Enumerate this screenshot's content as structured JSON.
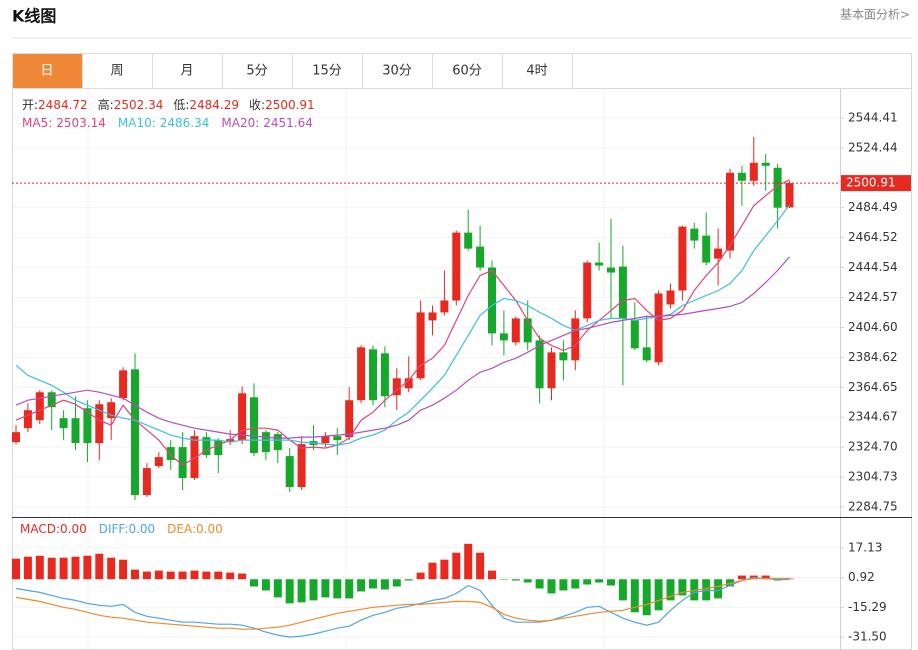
{
  "header": {
    "title": "K线图",
    "link": "基本面分析>"
  },
  "tabs": [
    "日",
    "周",
    "月",
    "5分",
    "15分",
    "30分",
    "60分",
    "4时"
  ],
  "active_tab": 0,
  "chart_data": [
    {
      "type": "candlestick",
      "ohlc_labels": [
        "开:",
        "高:",
        "低:",
        "收:"
      ],
      "up_color": "#e8291f",
      "down_color": "#16a82b",
      "ylim": [
        2278.09,
        2563.71
      ],
      "yticks": [
        2544.41,
        2524.44,
        2484.49,
        2464.52,
        2444.54,
        2424.57,
        {
          "value": 2404.6,
          "label": "2404.60"
        },
        2384.62,
        2364.65,
        2344.67,
        {
          "value": 2324.7,
          "label": "2324.70"
        },
        2304.73,
        2284.75
      ],
      "grid": true,
      "ohlc": [
        [
          2328.05,
          2339.37,
          2326.72,
          2334.71
        ],
        [
          2337.37,
          2354.01,
          2334.71,
          2349.35
        ],
        [
          2342.7,
          2362.66,
          2340.03,
          2361.33
        ],
        [
          2361.33,
          2362.66,
          2336.04,
          2351.35
        ],
        [
          2344.03,
          2349.35,
          2329.38,
          2337.37
        ],
        [
          2344.03,
          2358.67,
          2322.73,
          2327.39
        ],
        [
          2350.68,
          2356.01,
          2314.75,
          2327.39
        ],
        [
          2327.39,
          2356.01,
          2316.08,
          2353.35
        ],
        [
          2344.03,
          2357.34,
          2329.38,
          2354.68
        ],
        [
          2357.34,
          2377.98,
          2356.01,
          2375.98
        ],
        [
          2376.65,
          2387.3,
          2289.44,
          2292.77
        ],
        [
          2292.77,
          2314.08,
          2291.44,
          2310.75
        ],
        [
          2312.08,
          2321.4,
          2310.75,
          2318.07
        ],
        [
          2324.73,
          2329.38,
          2309.42,
          2316.08
        ],
        [
          2324.73,
          2334.71,
          2296.1,
          2304.09
        ],
        [
          2304.09,
          2336.04,
          2302.76,
          2332.05
        ],
        [
          2331.38,
          2334.71,
          2317.41,
          2319.41
        ],
        [
          2329.38,
          2330.72,
          2307.42,
          2319.41
        ],
        [
          2328.05,
          2336.04,
          2326.06,
          2330.05
        ],
        [
          2329.38,
          2365.33,
          2326.72,
          2360.66
        ],
        [
          2358.0,
          2367.32,
          2318.74,
          2320.74
        ],
        [
          2334.71,
          2336.04,
          2316.08,
          2321.4
        ],
        [
          2333.38,
          2334.71,
          2314.08,
          2322.73
        ],
        [
          2318.74,
          2324.06,
          2294.77,
          2298.1
        ],
        [
          2298.1,
          2332.05,
          2296.1,
          2326.72
        ],
        [
          2328.72,
          2339.37,
          2322.73,
          2326.06
        ],
        [
          2327.39,
          2334.71,
          2324.73,
          2332.05
        ],
        [
          2332.05,
          2337.37,
          2319.41,
          2329.38
        ],
        [
          2331.38,
          2364.66,
          2329.38,
          2356.01
        ],
        [
          2356.01,
          2392.63,
          2354.01,
          2391.3
        ],
        [
          2389.97,
          2392.63,
          2352.68,
          2356.01
        ],
        [
          2387.3,
          2391.97,
          2351.35,
          2358.67
        ],
        [
          2359.33,
          2377.31,
          2349.35,
          2370.65
        ],
        [
          2363.99,
          2385.3,
          2361.33,
          2370.65
        ],
        [
          2370.65,
          2422.59,
          2369.32,
          2414.6
        ],
        [
          2409.28,
          2419.26,
          2399.29,
          2414.6
        ],
        [
          2414.6,
          2442.56,
          2412.6,
          2422.59
        ],
        [
          2422.59,
          2469.19,
          2419.26,
          2467.86
        ],
        [
          2467.86,
          2483.17,
          2455.88,
          2457.21
        ],
        [
          2458.54,
          2472.51,
          2442.56,
          2444.56
        ],
        [
          2444.56,
          2449.22,
          2392.63,
          2400.62
        ],
        [
          2400.62,
          2415.93,
          2385.97,
          2395.96
        ],
        [
          2394.63,
          2411.94,
          2392.63,
          2410.61
        ],
        [
          2410.61,
          2422.59,
          2389.3,
          2394.63
        ],
        [
          2395.96,
          2399.29,
          2354.01,
          2363.99
        ],
        [
          2363.99,
          2391.3,
          2356.01,
          2387.97
        ],
        [
          2387.97,
          2395.96,
          2369.32,
          2382.64
        ],
        [
          2382.64,
          2415.93,
          2375.98,
          2410.61
        ],
        [
          2410.61,
          2449.22,
          2407.95,
          2447.89
        ],
        [
          2447.89,
          2461.2,
          2442.56,
          2445.89
        ],
        [
          2444.56,
          2477.17,
          2410.61,
          2441.23
        ],
        [
          2445.22,
          2459.2,
          2365.99,
          2410.61
        ],
        [
          2409.28,
          2421.26,
          2389.3,
          2390.64
        ],
        [
          2391.3,
          2412.6,
          2381.31,
          2382.64
        ],
        [
          2381.31,
          2429.24,
          2379.31,
          2427.24
        ],
        [
          2419.93,
          2433.9,
          2417.26,
          2429.24
        ],
        [
          2429.24,
          2472.51,
          2422.59,
          2471.85
        ],
        [
          2470.52,
          2474.51,
          2457.21,
          2462.53
        ],
        [
          2465.86,
          2481.17,
          2445.89,
          2447.89
        ],
        [
          2450.55,
          2470.52,
          2432.57,
          2457.21
        ],
        [
          2455.88,
          2510.46,
          2450.55,
          2507.8
        ],
        [
          2507.8,
          2512.46,
          2485.83,
          2502.47
        ],
        [
          2502.47,
          2531.76,
          2499.14,
          2514.46
        ],
        [
          2514.46,
          2520.45,
          2495.82,
          2512.46
        ],
        [
          2511.13,
          2513.8,
          2470.52,
          2484.5
        ],
        [
          2484.72,
          2502.34,
          2484.29,
          2500.91
        ]
      ],
      "series": [
        {
          "name": "MA5:",
          "color": "#e0457b",
          "values": [
            2342.71,
            2346.03,
            2349.36,
            2352.69,
            2356.02,
            2353.36,
            2348.03,
            2342.71,
            2339.38,
            2352.69,
            2342.71,
            2336.05,
            2329.39,
            2319.41,
            2312.75,
            2317.41,
            2322.73,
            2326.06,
            2329.39,
            2336.05,
            2337.38,
            2337.38,
            2336.05,
            2329.39,
            2324.07,
            2324.73,
            2324.07,
            2326.06,
            2330.72,
            2342.71,
            2348.03,
            2356.02,
            2362.68,
            2369.33,
            2379.32,
            2383.98,
            2392.63,
            2409.28,
            2425.92,
            2439.23,
            2442.56,
            2432.58,
            2422.59,
            2409.28,
            2397.29,
            2392.63,
            2389.3,
            2392.63,
            2402.62,
            2409.28,
            2415.93,
            2422.59,
            2423.92,
            2415.93,
            2409.28,
            2410.61,
            2415.93,
            2429.25,
            2439.23,
            2447.89,
            2459.2,
            2472.52,
            2485.83,
            2492.49,
            2499.15,
            2503.14
          ]
        },
        {
          "name": "MA10:",
          "color": "#3cbfdc",
          "values": [
            2379.32,
            2372.66,
            2369.33,
            2366.01,
            2361.35,
            2356.02,
            2352.69,
            2349.36,
            2346.03,
            2344.04,
            2342.71,
            2339.38,
            2336.05,
            2332.72,
            2330.72,
            2329.39,
            2329.39,
            2329.39,
            2328.06,
            2329.39,
            2329.39,
            2329.39,
            2329.39,
            2329.39,
            2328.06,
            2327.39,
            2326.73,
            2326.06,
            2327.39,
            2330.72,
            2332.72,
            2336.05,
            2342.71,
            2348.03,
            2356.02,
            2364.01,
            2372.66,
            2385.98,
            2399.29,
            2412.6,
            2419.26,
            2423.92,
            2422.59,
            2419.26,
            2414.6,
            2410.61,
            2405.95,
            2402.62,
            2405.95,
            2409.28,
            2410.61,
            2410.61,
            2409.28,
            2410.61,
            2411.94,
            2413.27,
            2419.26,
            2422.59,
            2425.92,
            2429.25,
            2433.91,
            2442.56,
            2455.87,
            2465.86,
            2475.85,
            2486.34
          ]
        },
        {
          "name": "MA20:",
          "color": "#b44fc0",
          "values": [
            2352.69,
            2356.02,
            2357.35,
            2358.68,
            2360.01,
            2361.35,
            2362.68,
            2361.35,
            2359.35,
            2357.35,
            2352.69,
            2348.03,
            2344.04,
            2341.37,
            2339.38,
            2337.38,
            2336.05,
            2334.72,
            2333.39,
            2332.72,
            2332.05,
            2331.39,
            2330.72,
            2330.72,
            2331.39,
            2331.39,
            2332.05,
            2332.72,
            2333.39,
            2334.72,
            2336.05,
            2337.38,
            2339.38,
            2342.71,
            2349.36,
            2352.69,
            2357.35,
            2362.68,
            2369.33,
            2374.66,
            2377.32,
            2381.32,
            2383.98,
            2387.97,
            2392.63,
            2395.96,
            2399.29,
            2402.62,
            2403.95,
            2405.95,
            2407.94,
            2409.28,
            2410.61,
            2411.94,
            2411.94,
            2412.6,
            2413.27,
            2414.6,
            2415.93,
            2417.26,
            2418.6,
            2421.26,
            2427.25,
            2434.57,
            2442.56,
            2451.64
          ]
        }
      ]
    },
    {
      "type": "macd",
      "ylim": [
        -38.52,
        33.34
      ],
      "yticks": [
        17.13,
        0.92,
        -15.29,
        {
          "value": -31.5,
          "label": "-31.50"
        }
      ],
      "histogram": {
        "name": "MACD:",
        "readout": 0,
        "readout_label": "0.00",
        "up_color": "#e8291f",
        "down_color": "#16a82b",
        "values": [
          11.18,
          12.26,
          12.8,
          11.72,
          11.72,
          12.26,
          12.8,
          13.89,
          11.72,
          10.64,
          5.24,
          4.16,
          4.7,
          4.16,
          4.16,
          4.7,
          4.16,
          4.16,
          3.62,
          3.08,
          -3.94,
          -6.11,
          -9.89,
          -13.13,
          -12.59,
          -11.51,
          -9.89,
          -10.43,
          -10.43,
          -6.65,
          -5.02,
          -5.57,
          -3.94,
          -0.7,
          3.62,
          9.02,
          10.64,
          14.43,
          19.29,
          14.43,
          4.7,
          -0.16,
          -0.7,
          -1.78,
          -5.02,
          -7.73,
          -6.11,
          -5.02,
          -2.86,
          -1.78,
          -3.4,
          -11.51,
          -17.99,
          -19.61,
          -16.91,
          -11.51,
          -8.81,
          -11.51,
          -11.51,
          -10.43,
          -3.94,
          2.0,
          2.0,
          2.0,
          -0.7,
          0.38
        ]
      },
      "series": [
        {
          "name": "DIFF:",
          "readout": 0,
          "readout_label": "0.00",
          "color": "#4ea6e8",
          "values": [
            -5.02,
            -6.11,
            -7.19,
            -8.81,
            -10.43,
            -11.51,
            -13.13,
            -14.21,
            -14.75,
            -13.67,
            -17.99,
            -20.15,
            -21.23,
            -22.31,
            -23.39,
            -23.39,
            -23.93,
            -24.47,
            -24.47,
            -25.02,
            -26.64,
            -28.8,
            -30.42,
            -31.5,
            -30.96,
            -29.88,
            -28.26,
            -26.64,
            -25.56,
            -22.31,
            -19.61,
            -17.99,
            -15.83,
            -14.75,
            -13.13,
            -11.51,
            -10.43,
            -7.73,
            -3.4,
            -6.11,
            -14.21,
            -21.23,
            -23.39,
            -23.39,
            -23.39,
            -22.31,
            -20.15,
            -17.99,
            -15.29,
            -14.75,
            -17.99,
            -21.23,
            -23.39,
            -25.02,
            -23.39,
            -16.91,
            -11.51,
            -7.19,
            -6.11,
            -6.11,
            -3.4,
            -0.7,
            0.92,
            0.38,
            -0.16,
            -0.16
          ]
        },
        {
          "name": "DEA:",
          "readout": 0,
          "readout_label": "0.00",
          "color": "#ef8a2e",
          "values": [
            -9.89,
            -10.97,
            -12.05,
            -13.67,
            -15.29,
            -16.37,
            -17.99,
            -19.61,
            -20.69,
            -21.23,
            -22.31,
            -23.39,
            -23.93,
            -24.47,
            -25.02,
            -25.56,
            -26.1,
            -26.64,
            -26.64,
            -27.18,
            -27.18,
            -26.64,
            -26.1,
            -25.02,
            -23.39,
            -21.77,
            -20.15,
            -18.53,
            -17.45,
            -16.37,
            -15.29,
            -14.75,
            -14.21,
            -13.67,
            -13.67,
            -13.13,
            -12.59,
            -12.05,
            -12.05,
            -12.59,
            -15.29,
            -19.07,
            -21.23,
            -22.31,
            -22.85,
            -22.31,
            -21.23,
            -20.15,
            -19.07,
            -17.99,
            -17.45,
            -16.91,
            -15.29,
            -13.67,
            -11.51,
            -9.35,
            -7.19,
            -6.11,
            -5.02,
            -3.94,
            -2.32,
            -0.7,
            0.38,
            0.38,
            0.38,
            0.38
          ]
        }
      ]
    }
  ]
}
